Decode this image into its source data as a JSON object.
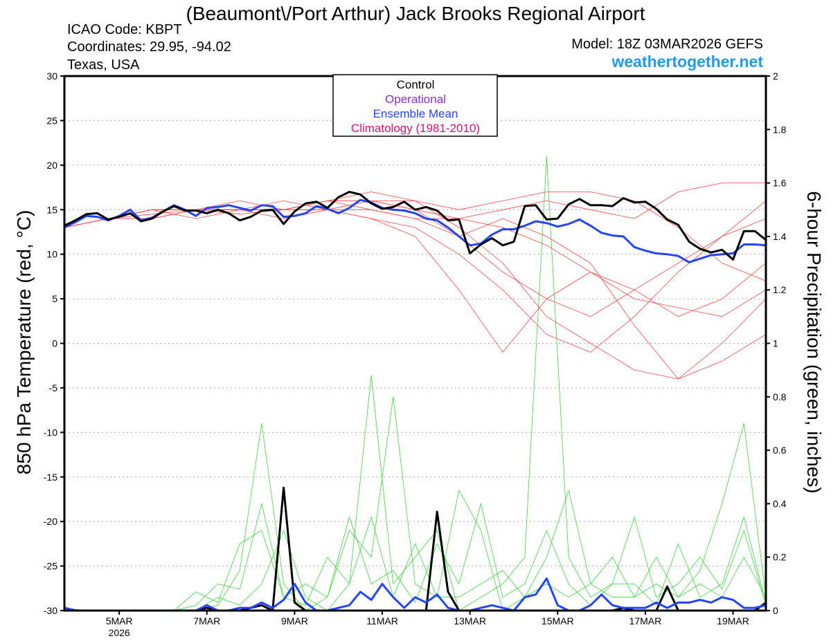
{
  "header": {
    "title": "(Beaumont\\/Port Arthur) Jack Brooks Regional Airport",
    "icao": "ICAO Code: KBPT",
    "coords": "Coordinates: 29.95, -94.02",
    "region": "Texas, USA",
    "model": "Model: 18Z 03MAR2026 GEFS",
    "site": "weathertogether.net"
  },
  "legend": {
    "control": "Control",
    "operational": "Operational",
    "mean": "Ensemble Mean",
    "climo": "Climatology (1981-2010)"
  },
  "colors": {
    "control": "#000000",
    "operational": "#8a2be2",
    "mean": "#2244ff",
    "climo": "#e0106f",
    "member_temp": "#ff4444",
    "member_precip": "#33dd33",
    "site": "#1e9bf0"
  },
  "chart_data": {
    "type": "line",
    "xlabel": "",
    "ylabel": "850 hPa Temperature (red, °C)",
    "y2label": "6-hour Precipitation (green, inches)",
    "x_start": "18Z 03MAR2026",
    "x_step_hours": 6,
    "x_days": 16,
    "ylim": [
      -30,
      30
    ],
    "y2lim": [
      0,
      2
    ],
    "yticks": [
      "30",
      "25",
      "20",
      "15",
      "10",
      "5",
      "0",
      "-5",
      "-10",
      "-15",
      "-20",
      "-25",
      "-30"
    ],
    "y2ticks": [
      "2",
      "1.8",
      "1.6",
      "1.4",
      "1.2",
      "1",
      "0.8",
      "0.6",
      "0.4",
      "0.2",
      "0"
    ],
    "xticks": [
      {
        "label": "5MAR",
        "sub": "2026",
        "day": 1.25
      },
      {
        "label": "7MAR",
        "sub": "",
        "day": 3.25
      },
      {
        "label": "9MAR",
        "sub": "",
        "day": 5.25
      },
      {
        "label": "11MAR",
        "sub": "",
        "day": 7.25
      },
      {
        "label": "13MAR",
        "sub": "",
        "day": 9.25
      },
      {
        "label": "15MAR",
        "sub": "",
        "day": 11.25
      },
      {
        "label": "17MAR",
        "sub": "",
        "day": 13.25
      },
      {
        "label": "19MAR",
        "sub": "",
        "day": 15.25
      }
    ],
    "grid": true,
    "control_temp": [
      13.2,
      13.8,
      14.5,
      14.6,
      13.9,
      14.2,
      14.6,
      13.7,
      14.0,
      14.8,
      15.4,
      14.9,
      14.9,
      14.6,
      15.0,
      14.6,
      13.8,
      14.2,
      14.9,
      15.0,
      13.4,
      14.8,
      15.7,
      15.9,
      15.2,
      16.4,
      17.0,
      16.7,
      15.7,
      15.1,
      15.3,
      15.9,
      15.0,
      15.3,
      14.9,
      13.8,
      13.9,
      10.1,
      11.1,
      11.8,
      11.0,
      11.4,
      15.4,
      15.5,
      13.9,
      14.0,
      15.6,
      16.2,
      15.5,
      15.5,
      15.4,
      16.3,
      15.8,
      15.9,
      15.1,
      13.9,
      13.3,
      11.4,
      10.6,
      10.2,
      10.5,
      9.4,
      12.6,
      12.6,
      11.6
    ],
    "mean_temp": [
      13.0,
      13.6,
      14.3,
      14.2,
      13.8,
      14.3,
      15.0,
      13.8,
      14.1,
      14.8,
      15.5,
      15.0,
      14.3,
      15.2,
      15.3,
      15.5,
      15.2,
      14.9,
      15.5,
      15.4,
      14.2,
      14.3,
      14.6,
      15.4,
      15.1,
      14.6,
      15.2,
      16.1,
      15.8,
      15.2,
      15.0,
      14.9,
      14.6,
      14.0,
      13.8,
      13.0,
      12.0,
      11.0,
      11.2,
      12.2,
      12.8,
      12.8,
      13.2,
      13.7,
      13.5,
      13.1,
      13.4,
      13.9,
      13.2,
      12.4,
      12.1,
      12.0,
      10.8,
      10.4,
      10.1,
      10.0,
      9.8,
      9.1,
      9.5,
      9.9,
      10.0,
      10.1,
      11.1,
      11.1,
      11.0
    ],
    "control_precip": [
      0.01,
      0,
      0,
      0,
      0,
      0,
      0,
      0,
      0,
      0,
      0,
      0,
      0,
      0.01,
      0,
      0,
      0,
      0.01,
      0.02,
      0,
      0.46,
      0.03,
      0,
      0,
      0,
      0,
      0,
      0,
      0,
      0,
      0,
      0,
      0,
      0,
      0.37,
      0.07,
      0,
      0,
      0,
      0,
      0,
      0,
      0,
      0,
      0,
      0,
      0,
      0,
      0,
      0,
      0,
      0.01,
      0,
      0,
      0,
      0.09,
      0,
      0,
      0,
      0,
      0,
      0,
      0,
      0,
      0.03
    ],
    "mean_precip": [
      0.01,
      0,
      0,
      0,
      0,
      0,
      0,
      0,
      0,
      0,
      0,
      0,
      0,
      0.02,
      0,
      0,
      0.01,
      0.01,
      0.03,
      0.01,
      0.04,
      0.1,
      0.03,
      0,
      0,
      0.01,
      0.02,
      0.07,
      0.04,
      0.1,
      0.05,
      0.01,
      0.05,
      0.03,
      0.06,
      0.01,
      0,
      0,
      0.01,
      0.02,
      0.01,
      0,
      0.05,
      0.06,
      0.12,
      0.02,
      0,
      0,
      0.02,
      0.06,
      0.02,
      0.01,
      0.01,
      0.01,
      0.03,
      0.01,
      0.03,
      0.03,
      0.04,
      0.03,
      0.05,
      0.04,
      0.01,
      0.01,
      0.02
    ],
    "member_temp_step_hours": 24,
    "member_temp": [
      [
        13,
        14,
        14.5,
        15,
        15,
        15,
        16,
        16,
        15,
        12,
        8,
        5,
        3,
        6,
        9,
        12,
        14
      ],
      [
        13,
        14,
        15,
        15,
        14.5,
        15,
        15,
        14,
        13,
        10,
        6,
        1,
        -1,
        3,
        8,
        12,
        16
      ],
      [
        13,
        14,
        14,
        15,
        15,
        15,
        16,
        16,
        16,
        13,
        9,
        3,
        0,
        -3,
        -4,
        -2,
        1
      ],
      [
        13,
        14,
        15,
        15,
        16,
        15,
        16,
        17,
        16,
        15,
        16,
        17,
        17,
        16,
        13,
        9,
        7
      ],
      [
        13,
        14,
        14,
        15,
        15,
        15,
        15,
        14,
        12,
        6,
        -1,
        5,
        8,
        5,
        4,
        3,
        6
      ],
      [
        13,
        14,
        15,
        15,
        15,
        14,
        15,
        16,
        15,
        14,
        15,
        16,
        15,
        14,
        17,
        18,
        18
      ],
      [
        13,
        14,
        14,
        15,
        15,
        16,
        15,
        15,
        14,
        14,
        13,
        11,
        8,
        6,
        3,
        5,
        9
      ],
      [
        13,
        14,
        15,
        14,
        15,
        15,
        16,
        15,
        14,
        12,
        14,
        12,
        9,
        2,
        -4,
        0,
        5
      ]
    ],
    "member_precip_step_hours": 12,
    "member_precip": [
      [
        0,
        0,
        0,
        0,
        0,
        0,
        0,
        0.05,
        0.02,
        0.1,
        0.3,
        0.05,
        0,
        0.1,
        0.88,
        0.1,
        0.2,
        0.3,
        0,
        0.05,
        0.1,
        0.2,
        1.7,
        0.2,
        0.05,
        0.1,
        0.35,
        0.05,
        0.1,
        0.2,
        0.08,
        0.3,
        0.02
      ],
      [
        0,
        0,
        0,
        0,
        0,
        0,
        0,
        0.02,
        0.15,
        0.7,
        0.1,
        0,
        0.05,
        0.3,
        0.2,
        0.8,
        0.1,
        0.05,
        0.45,
        0.3,
        0,
        0.05,
        0.2,
        0.45,
        0.1,
        0.05,
        0.05,
        0.2,
        0.05,
        0.15,
        0.4,
        0.7,
        0.05
      ],
      [
        0.01,
        0,
        0,
        0,
        0,
        0,
        0.07,
        0.03,
        0.25,
        0.3,
        0.05,
        0.1,
        0.05,
        0.35,
        0.1,
        0.15,
        0.03,
        0.25,
        0.1,
        0.4,
        0.05,
        0.1,
        0.3,
        0.1,
        0.02,
        0.1,
        0.1,
        0.02,
        0.25,
        0.05,
        0.1,
        0.35,
        0.03
      ],
      [
        0,
        0,
        0,
        0,
        0,
        0,
        0.02,
        0.1,
        0.08,
        0.4,
        0.05,
        0.02,
        0.2,
        0.1,
        0.35,
        0.05,
        0.25,
        0.05,
        0.05,
        0.1,
        0.15,
        0.05,
        0.1,
        0.05,
        0.1,
        0.2,
        0.05,
        0.1,
        0.05,
        0.1,
        0.05,
        0.2,
        0.05
      ]
    ]
  }
}
